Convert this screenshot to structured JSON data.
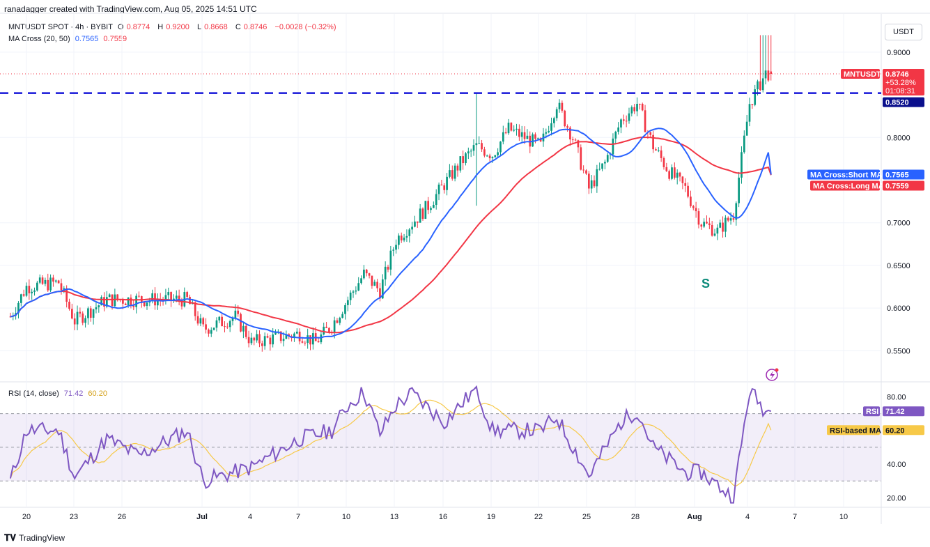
{
  "header": {
    "attribution": "ranadagger created with TradingView.com, Aug 05, 2025 14:51 UTC"
  },
  "legend": {
    "symbol": "MNTUSDT SPOT · 4h · BYBIT",
    "open_label": "O",
    "open": "0.8774",
    "high_label": "H",
    "high": "0.9200",
    "low_label": "L",
    "low": "0.8668",
    "close_label": "C",
    "close": "0.8746",
    "change": "−0.0028 (−0.32%)",
    "ma_title": "MA Cross (20, 50)",
    "ma_short": "0.7565",
    "ma_long": "0.7559",
    "rsi_title": "RSI (14, close)",
    "rsi_value": "71.42",
    "rsi_ma_value": "60.20"
  },
  "unit_button": "USDT",
  "price_axis_labels": [
    "0.9000",
    "0.8000",
    "0.7000",
    "0.6500",
    "0.6000",
    "0.5500"
  ],
  "rsi_axis_labels": [
    "80.00",
    "40.00",
    "20.00"
  ],
  "x_axis_labels": [
    "20",
    "23",
    "26",
    "Jul",
    "4",
    "7",
    "10",
    "13",
    "16",
    "19",
    "22",
    "25",
    "28",
    "Aug",
    "4",
    "7",
    "10"
  ],
  "tags": {
    "price": {
      "name": "MNTUSDT",
      "value": "0.8746",
      "change": "+53.28%",
      "timer": "01:08:31"
    },
    "resistance": "0.8520",
    "short_ma": {
      "name": "MA Cross:Short MA",
      "value": "0.7565"
    },
    "long_ma": {
      "name": "MA Cross:Long MA",
      "value": "0.7559"
    },
    "rsi": {
      "name": "RSI",
      "value": "71.42"
    },
    "rsi_ma": {
      "name": "RSI-based MA",
      "value": "60.20"
    }
  },
  "annotation_s": "S",
  "footer": {
    "brand": "TradingView"
  },
  "colors": {
    "up": "#089981",
    "down": "#f23645",
    "short_ma": "#2962ff",
    "long_ma": "#f23645",
    "rsi": "#7e57c2",
    "rsi_ma": "#f7c948",
    "resistance": "#1515d8",
    "annotation": "#0b8a7a"
  },
  "chart_data": [
    {
      "type": "candlestick",
      "title": "MNTUSDT SPOT · 4h · BYBIT",
      "price_range": [
        0.52,
        0.9367
      ],
      "x_range_label": "Jun 19 – Aug 5, 2025 (4h bars)",
      "resistance_level": 0.852,
      "approximate_closes": [
        {
          "date": "Jun 19",
          "close": 0.59
        },
        {
          "date": "Jun 20",
          "close": 0.625
        },
        {
          "date": "Jun 22",
          "close": 0.63
        },
        {
          "date": "Jun 23",
          "close": 0.585
        },
        {
          "date": "Jun 25",
          "close": 0.61
        },
        {
          "date": "Jun 27",
          "close": 0.61
        },
        {
          "date": "Jun 30",
          "close": 0.61
        },
        {
          "date": "Jul 1",
          "close": 0.575
        },
        {
          "date": "Jul 3",
          "close": 0.59
        },
        {
          "date": "Jul 4",
          "close": 0.56
        },
        {
          "date": "Jul 7",
          "close": 0.57
        },
        {
          "date": "Jul 8",
          "close": 0.56
        },
        {
          "date": "Jul 9",
          "close": 0.58
        },
        {
          "date": "Jul 10",
          "close": 0.61
        },
        {
          "date": "Jul 11",
          "close": 0.64
        },
        {
          "date": "Jul 12",
          "close": 0.62
        },
        {
          "date": "Jul 13",
          "close": 0.68
        },
        {
          "date": "Jul 15",
          "close": 0.72
        },
        {
          "date": "Jul 17",
          "close": 0.77
        },
        {
          "date": "Jul 18",
          "close": 0.79
        },
        {
          "date": "Jul 19",
          "close": 0.78
        },
        {
          "date": "Jul 20",
          "close": 0.81
        },
        {
          "date": "Jul 22",
          "close": 0.79
        },
        {
          "date": "Jul 23",
          "close": 0.84
        },
        {
          "date": "Jul 24",
          "close": 0.8
        },
        {
          "date": "Jul 25",
          "close": 0.74
        },
        {
          "date": "Jul 26",
          "close": 0.77
        },
        {
          "date": "Jul 27",
          "close": 0.82
        },
        {
          "date": "Jul 28",
          "close": 0.84
        },
        {
          "date": "Jul 29",
          "close": 0.79
        },
        {
          "date": "Jul 30",
          "close": 0.76
        },
        {
          "date": "Jul 31",
          "close": 0.74
        },
        {
          "date": "Aug 1",
          "close": 0.7
        },
        {
          "date": "Aug 2",
          "close": 0.69
        },
        {
          "date": "Aug 3",
          "close": 0.71
        },
        {
          "date": "Aug 4",
          "close": 0.84
        },
        {
          "date": "Aug 5",
          "close": 0.875
        }
      ],
      "series": [
        {
          "name": "MA Cross:Short MA",
          "last": 0.7565
        },
        {
          "name": "MA Cross:Long MA",
          "last": 0.7559
        }
      ]
    },
    {
      "type": "line",
      "title": "RSI (14, close)",
      "ylim": [
        16,
        86
      ],
      "bands": [
        30,
        70
      ],
      "approximate_values": [
        {
          "date": "Jun 19",
          "rsi": 30
        },
        {
          "date": "Jun 20",
          "rsi": 60
        },
        {
          "date": "Jun 22",
          "rsi": 60
        },
        {
          "date": "Jun 23",
          "rsi": 32
        },
        {
          "date": "Jun 25",
          "rsi": 55
        },
        {
          "date": "Jun 27",
          "rsi": 45
        },
        {
          "date": "Jun 30",
          "rsi": 60
        },
        {
          "date": "Jul 1",
          "rsi": 30
        },
        {
          "date": "Jul 4",
          "rsi": 38
        },
        {
          "date": "Jul 7",
          "rsi": 55
        },
        {
          "date": "Jul 9",
          "rsi": 60
        },
        {
          "date": "Jul 10",
          "rsi": 75
        },
        {
          "date": "Jul 11",
          "rsi": 83
        },
        {
          "date": "Jul 12",
          "rsi": 58
        },
        {
          "date": "Jul 13",
          "rsi": 75
        },
        {
          "date": "Jul 14",
          "rsi": 82
        },
        {
          "date": "Jul 16",
          "rsi": 65
        },
        {
          "date": "Jul 18",
          "rsi": 85
        },
        {
          "date": "Jul 19",
          "rsi": 60
        },
        {
          "date": "Jul 22",
          "rsi": 60
        },
        {
          "date": "Jul 23",
          "rsi": 68
        },
        {
          "date": "Jul 25",
          "rsi": 33
        },
        {
          "date": "Jul 27",
          "rsi": 65
        },
        {
          "date": "Jul 28",
          "rsi": 72
        },
        {
          "date": "Jul 29",
          "rsi": 50
        },
        {
          "date": "Jul 31",
          "rsi": 35
        },
        {
          "date": "Aug 1",
          "rsi": 35
        },
        {
          "date": "Aug 3",
          "rsi": 20
        },
        {
          "date": "Aug 4",
          "rsi": 84
        },
        {
          "date": "Aug 5",
          "rsi": 71.42
        }
      ],
      "series": [
        {
          "name": "RSI",
          "last": 71.42
        },
        {
          "name": "RSI-based MA",
          "last": 60.2
        }
      ]
    }
  ]
}
